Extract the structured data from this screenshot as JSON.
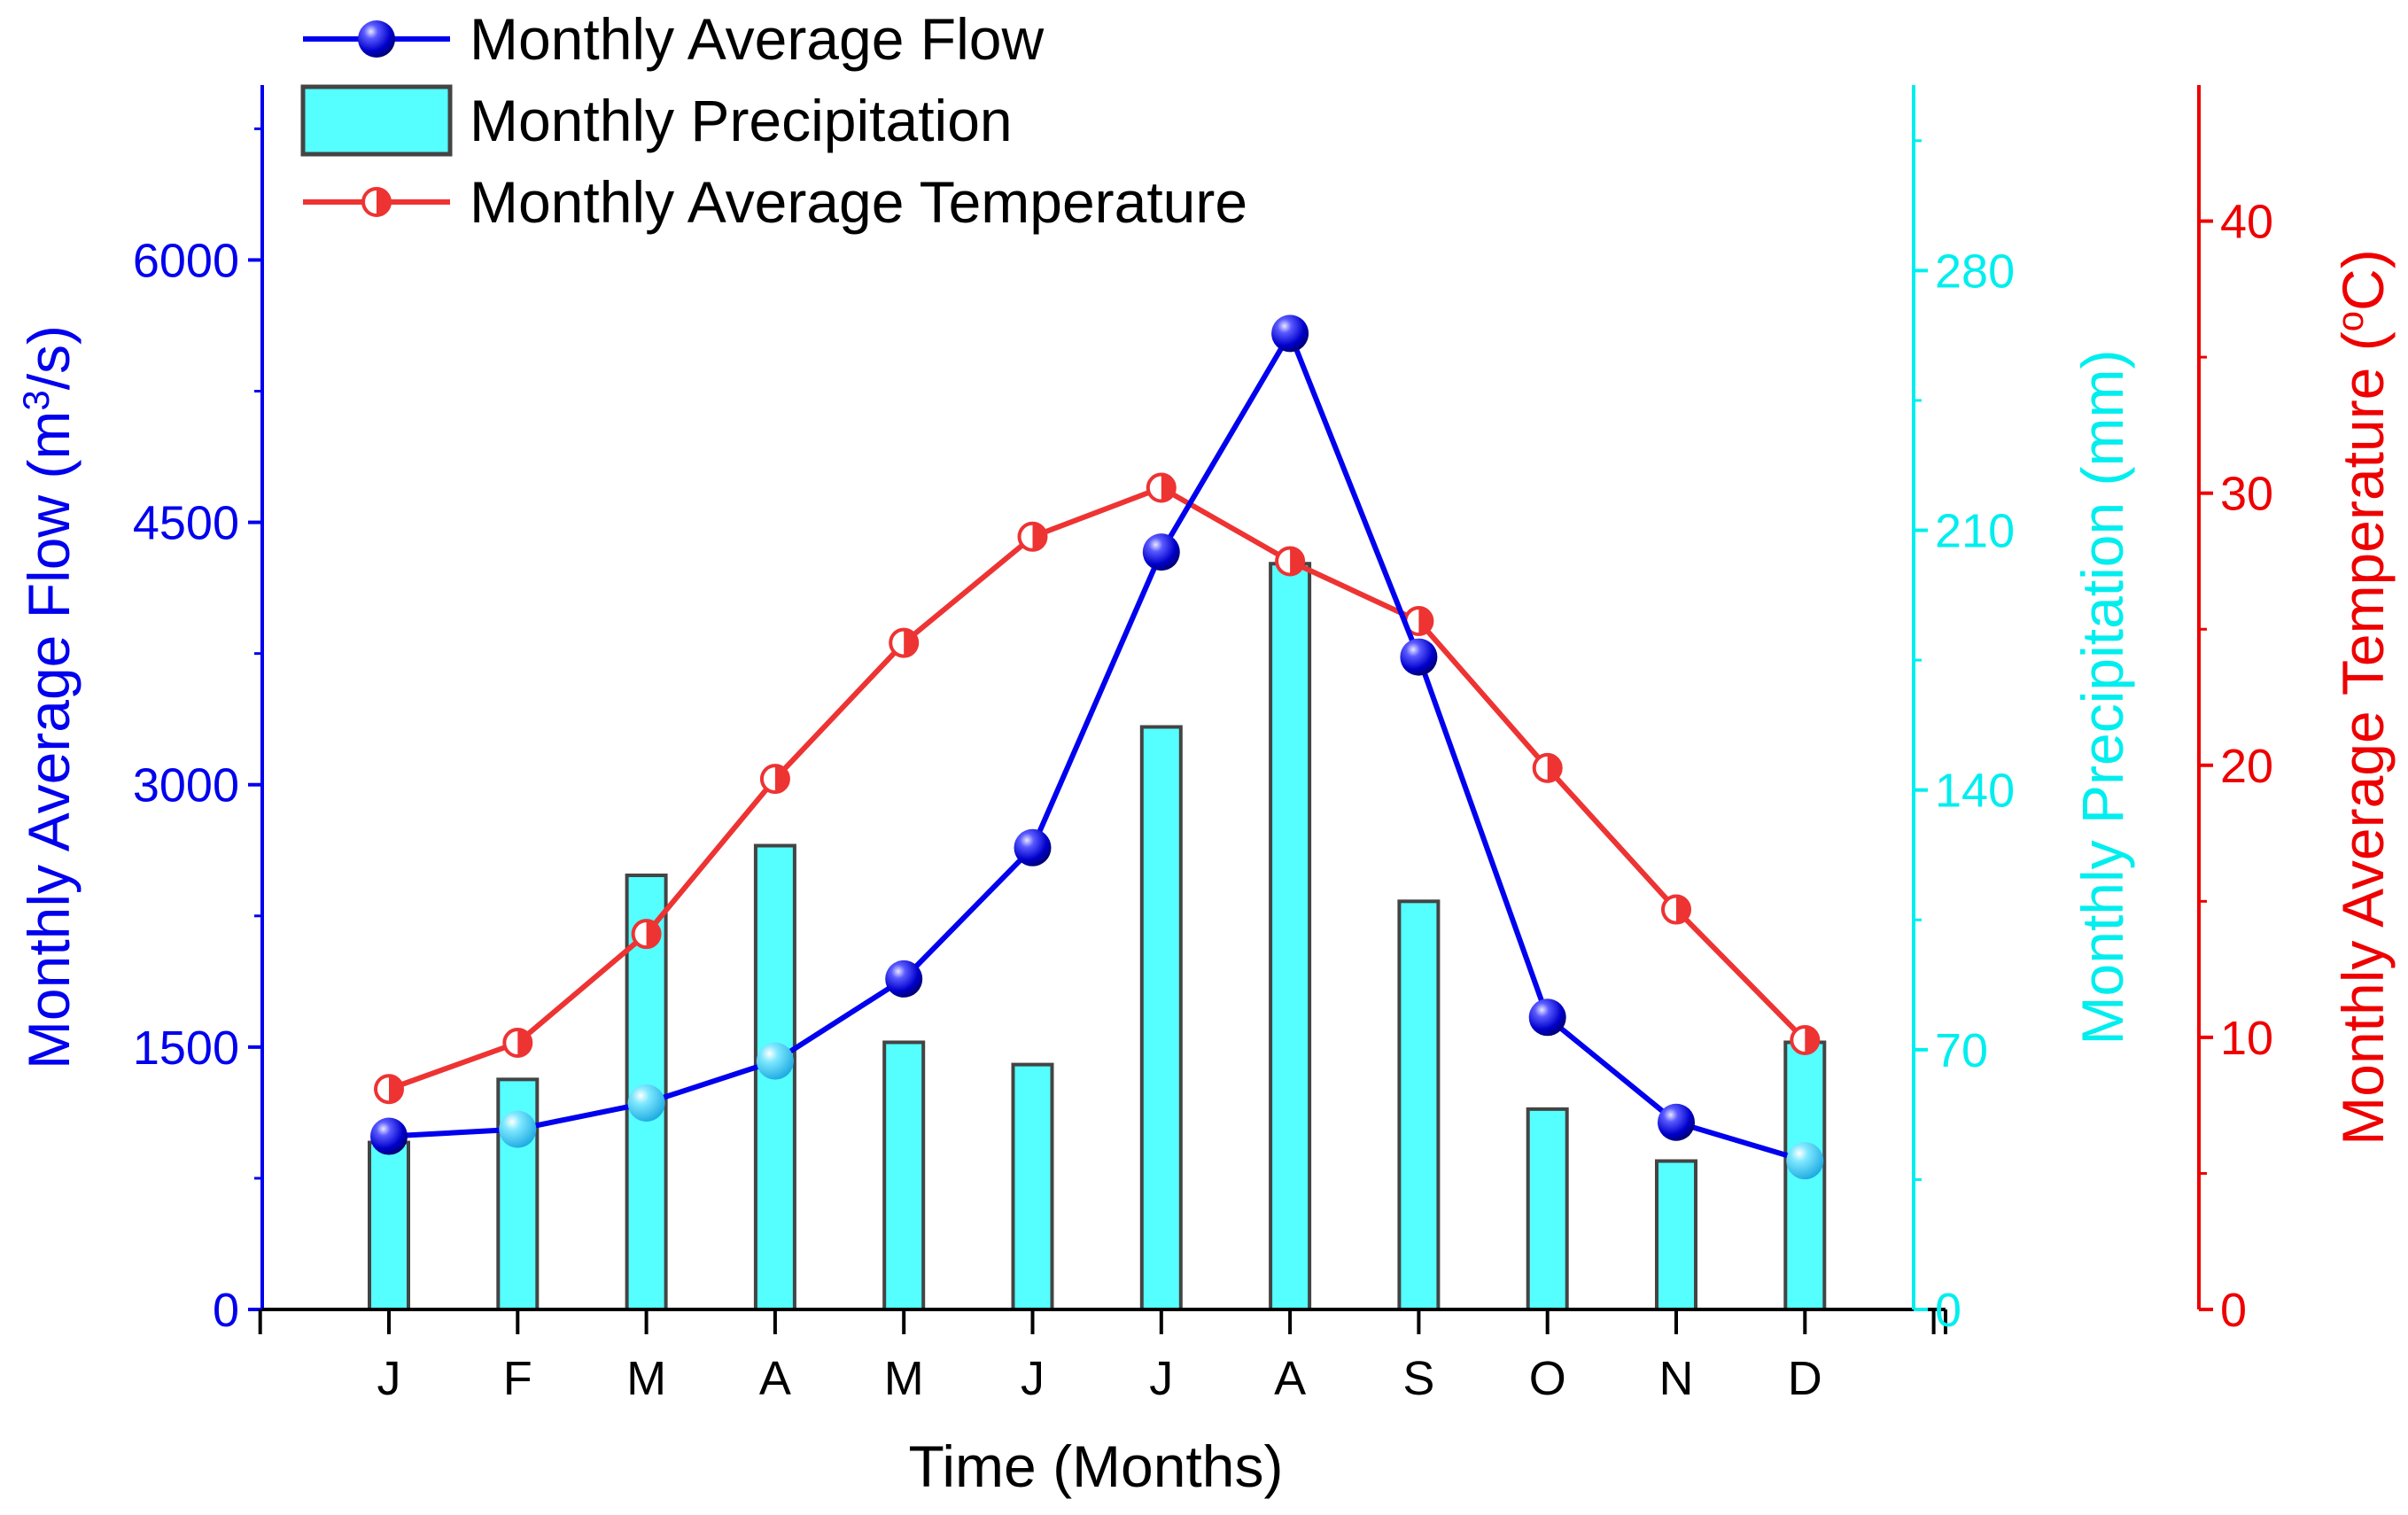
{
  "chart_data": {
    "type": "bar",
    "categories": [
      "J",
      "F",
      "M",
      "A",
      "M",
      "J",
      "J",
      "A",
      "S",
      "O",
      "N",
      "D"
    ],
    "xlabel": "Time (Months)",
    "series": [
      {
        "name": "Monthly Average Flow",
        "type": "line",
        "axis": "left",
        "values": [
          990,
          1030,
          1180,
          1420,
          1890,
          2640,
          4330,
          5580,
          3730,
          1670,
          1070,
          850
        ],
        "color": "#0000ee",
        "marker": "blue-sphere"
      },
      {
        "name": "Monthly Precipitation",
        "type": "bar",
        "axis": "right-inner",
        "values": [
          45,
          62,
          117,
          125,
          72,
          66,
          157,
          201,
          110,
          54,
          40,
          72
        ],
        "color": "#55ffff",
        "edge_color": "#444444"
      },
      {
        "name": "Monthly Average Temperature",
        "type": "line",
        "axis": "right-outer",
        "values": [
          8.1,
          9.8,
          13.8,
          19.5,
          24.5,
          28.4,
          30.2,
          27.5,
          25.3,
          19.9,
          14.7,
          9.9
        ],
        "color": "#ee3333",
        "marker": "half-filled-circle"
      }
    ],
    "axes": {
      "left": {
        "label_parts": [
          "Monthly Average Flow (m",
          "3",
          "/s)"
        ],
        "ylim": [
          0,
          7000
        ],
        "ticks": [
          "0",
          "1500",
          "3000",
          "4500",
          "6000"
        ],
        "color": "#0000ee"
      },
      "right_inner": {
        "label": "Monthly Precipitation (mm)",
        "ylim": [
          0,
          330
        ],
        "ticks": [
          "0",
          "70",
          "140",
          "210",
          "280"
        ],
        "color": "#00eeee"
      },
      "right_outer": {
        "label_parts": [
          "Monthly Average Temperature (",
          "o",
          "C)"
        ],
        "ylim": [
          0,
          45
        ],
        "ticks": [
          "0",
          "10",
          "20",
          "30",
          "40"
        ],
        "color": "#ee0000"
      }
    },
    "legend": {
      "placement": "top-left",
      "entries": [
        "Monthly Average Flow",
        "Monthly Precipitation",
        "Monthly Average Temperature"
      ]
    },
    "grid": false
  }
}
